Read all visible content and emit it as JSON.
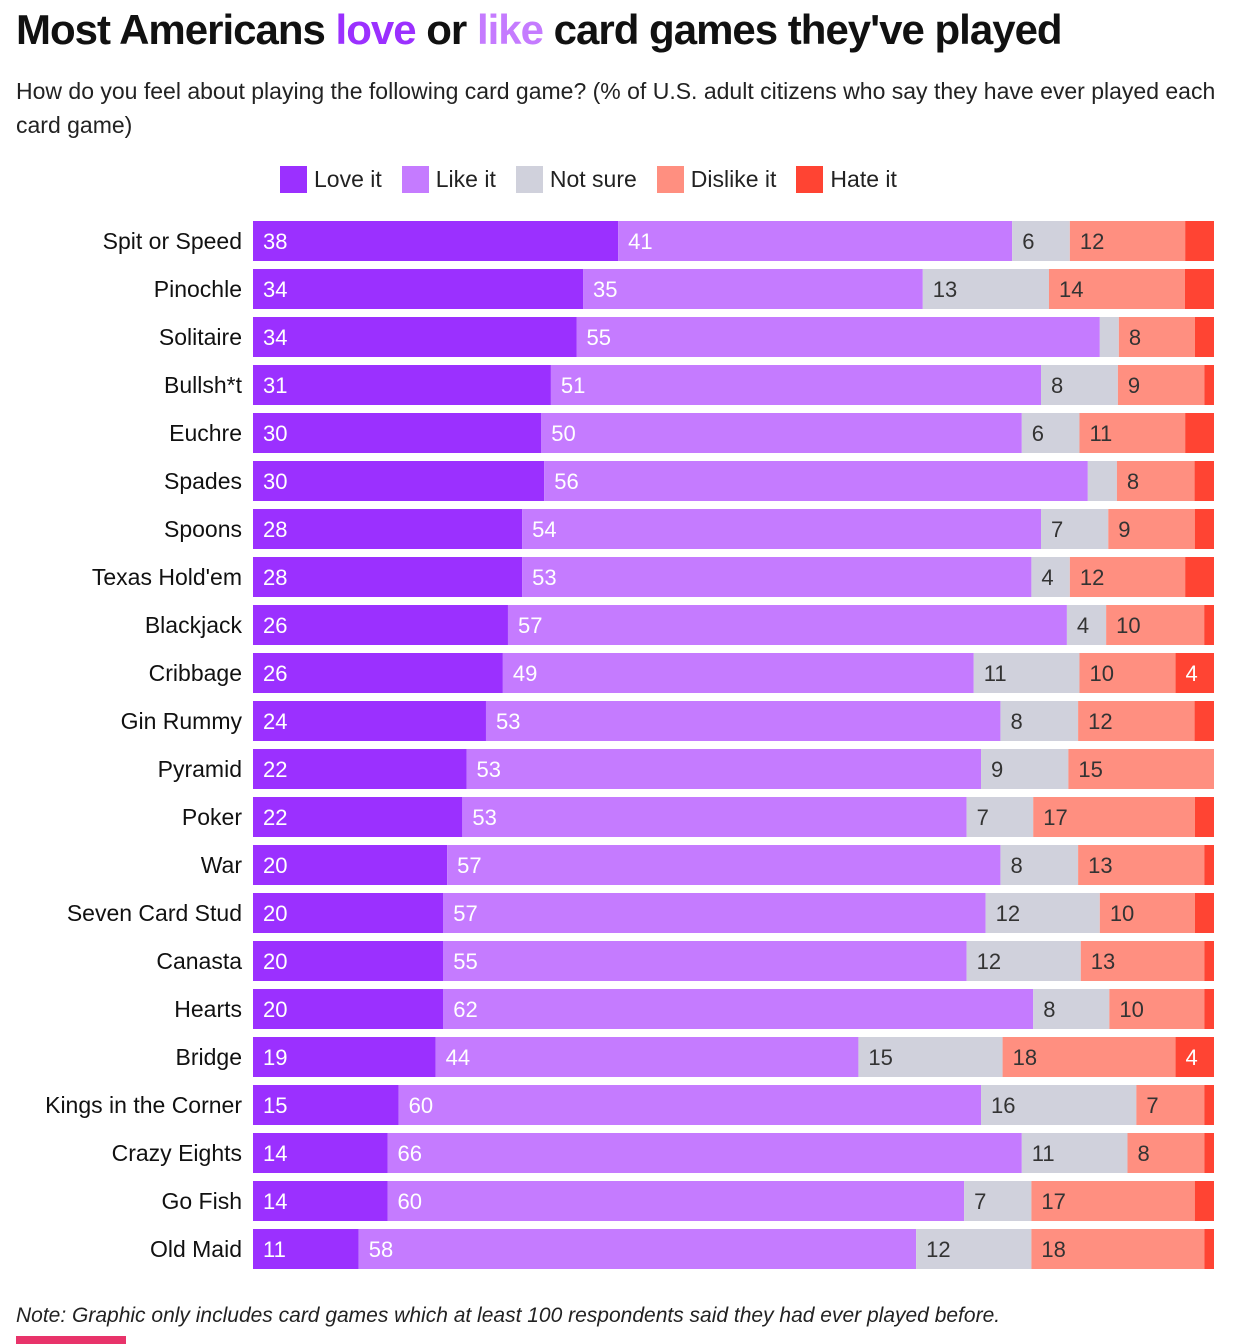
{
  "title": {
    "part1": "Most Americans ",
    "love": "love",
    "part2": " or ",
    "like": "like",
    "part3": " card games they've played"
  },
  "subtitle": "How do you feel about playing the following card game? (% of U.S. adult citizens who say they have ever played each card game)",
  "note": "Note: Graphic only includes card games which at least 100 respondents said they had ever played before.",
  "colors": {
    "love": "#9b30ff",
    "like": "#c57bff",
    "not_sure": "#d0d1dc",
    "dislike": "#ff8f80",
    "hate": "#ff4433"
  },
  "chart_data": {
    "type": "bar",
    "orientation": "horizontal",
    "stacked": true,
    "legend_position": "top",
    "xlim": [
      0,
      100
    ],
    "categories": [
      "Spit or Speed",
      "Pinochle",
      "Solitaire",
      "Bullsh*t",
      "Euchre",
      "Spades",
      "Spoons",
      "Texas Hold'em",
      "Blackjack",
      "Cribbage",
      "Gin Rummy",
      "Pyramid",
      "Poker",
      "War",
      "Seven Card Stud",
      "Canasta",
      "Hearts",
      "Bridge",
      "Kings in the Corner",
      "Crazy Eights",
      "Go Fish",
      "Old Maid"
    ],
    "series": [
      {
        "name": "Love it",
        "key": "love",
        "values": [
          38,
          34,
          34,
          31,
          30,
          30,
          28,
          28,
          26,
          26,
          24,
          22,
          22,
          20,
          20,
          20,
          20,
          19,
          15,
          14,
          14,
          11
        ]
      },
      {
        "name": "Like it",
        "key": "like",
        "values": [
          41,
          35,
          55,
          51,
          50,
          56,
          54,
          53,
          57,
          49,
          53,
          53,
          53,
          57,
          57,
          55,
          62,
          44,
          60,
          66,
          60,
          58
        ]
      },
      {
        "name": "Not sure",
        "key": "not_sure",
        "values": [
          6,
          13,
          2,
          8,
          6,
          3,
          7,
          4,
          4,
          11,
          8,
          9,
          7,
          8,
          12,
          12,
          8,
          15,
          16,
          11,
          7,
          12
        ]
      },
      {
        "name": "Dislike it",
        "key": "dislike",
        "values": [
          12,
          14,
          8,
          9,
          11,
          8,
          9,
          12,
          10,
          10,
          12,
          15,
          17,
          13,
          10,
          13,
          10,
          18,
          7,
          8,
          17,
          18
        ]
      },
      {
        "name": "Hate it",
        "key": "hate",
        "values": [
          3,
          3,
          2,
          1,
          3,
          2,
          2,
          3,
          1,
          4,
          2,
          0,
          2,
          1,
          2,
          1,
          1,
          4,
          1,
          1,
          2,
          1
        ]
      }
    ],
    "label_min_value": 4
  }
}
